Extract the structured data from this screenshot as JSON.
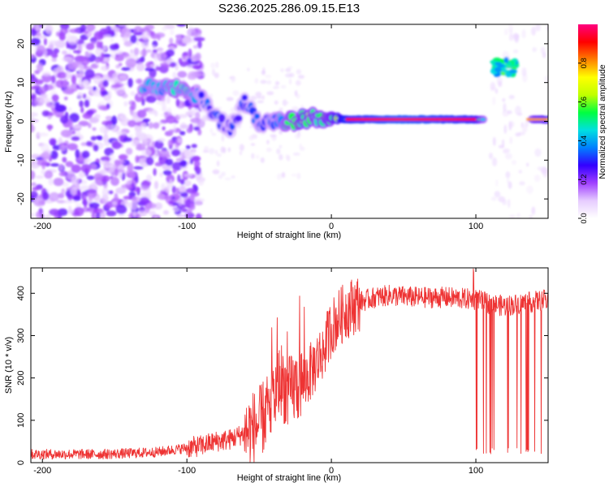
{
  "title": "S236.2025.286.09.15.E13",
  "chart_data": [
    {
      "type": "heatmap",
      "xlabel": "Height of straight line (km)",
      "ylabel": "Frequency (Hz)",
      "xlim": [
        -208,
        150
      ],
      "ylim": [
        -25,
        25
      ],
      "xticks": [
        -200,
        -100,
        0,
        100
      ],
      "yticks": [
        -20,
        -10,
        0,
        10,
        20
      ],
      "colorbar": {
        "label": "Normalized spectral amplitude",
        "range": [
          0,
          1
        ],
        "ticks": [
          "0.0",
          "0.2",
          "0.4",
          "0.6",
          "0.8"
        ],
        "colors": [
          "#ffffff",
          "#e6ccff",
          "#a040ff",
          "#3300ff",
          "#0080ff",
          "#00e0e0",
          "#00ff40",
          "#c0ff00",
          "#ffff00",
          "#ff8000",
          "#ff0000",
          "#ff0080"
        ]
      },
      "ridge": [
        {
          "x": -130,
          "f": 9,
          "amp": 0.45
        },
        {
          "x": -120,
          "f": 8.5,
          "amp": 0.4
        },
        {
          "x": -110,
          "f": 8.5,
          "amp": 0.45
        },
        {
          "x": -100,
          "f": 8,
          "amp": 0.45
        },
        {
          "x": -90,
          "f": 6,
          "amp": 0.35
        },
        {
          "x": -80,
          "f": 1,
          "amp": 0.3
        },
        {
          "x": -70,
          "f": -2,
          "amp": 0.3
        },
        {
          "x": -60,
          "f": 5,
          "amp": 0.3
        },
        {
          "x": -50,
          "f": 0,
          "amp": 0.35
        },
        {
          "x": -40,
          "f": 0,
          "amp": 0.35
        },
        {
          "x": -30,
          "f": 0,
          "amp": 0.5
        },
        {
          "x": -20,
          "f": 0.5,
          "amp": 0.6
        },
        {
          "x": -10,
          "f": 1,
          "amp": 0.55
        },
        {
          "x": 0,
          "f": 1,
          "amp": 0.6
        },
        {
          "x": 10,
          "f": 0.5,
          "amp": 0.85
        },
        {
          "x": 50,
          "f": 0.5,
          "amp": 0.95
        },
        {
          "x": 100,
          "f": 0.5,
          "amp": 0.85
        },
        {
          "x": 105,
          "f": 0.5,
          "amp": 0.5
        },
        {
          "x": 120,
          "f": 14,
          "amp": 0.5
        },
        {
          "x": 140,
          "f": 0.5,
          "amp": 0.65
        },
        {
          "x": 150,
          "f": 0.5,
          "amp": 0.75
        }
      ]
    },
    {
      "type": "line",
      "xlabel": "Height of straight line (km)",
      "ylabel": "SNR (10 * v/v)",
      "xlim": [
        -208,
        150
      ],
      "ylim": [
        0,
        460
      ],
      "xticks": [
        -200,
        -100,
        0,
        100
      ],
      "yticks": [
        0,
        100,
        200,
        300,
        400
      ],
      "color": "#ee3333",
      "series": [
        {
          "name": "SNR",
          "x": [
            -208,
            -180,
            -160,
            -140,
            -120,
            -100,
            -90,
            -80,
            -70,
            -60,
            -50,
            -40,
            -35,
            -30,
            -25,
            -20,
            -15,
            -10,
            -5,
            0,
            5,
            10,
            20,
            30,
            40,
            60,
            80,
            100,
            105,
            110,
            120,
            130,
            140,
            150
          ],
          "values": [
            20,
            20,
            20,
            22,
            25,
            35,
            40,
            50,
            55,
            70,
            90,
            150,
            200,
            160,
            180,
            190,
            210,
            240,
            270,
            320,
            340,
            360,
            380,
            390,
            395,
            390,
            390,
            385,
            380,
            375,
            370,
            375,
            380,
            385
          ]
        }
      ]
    }
  ]
}
